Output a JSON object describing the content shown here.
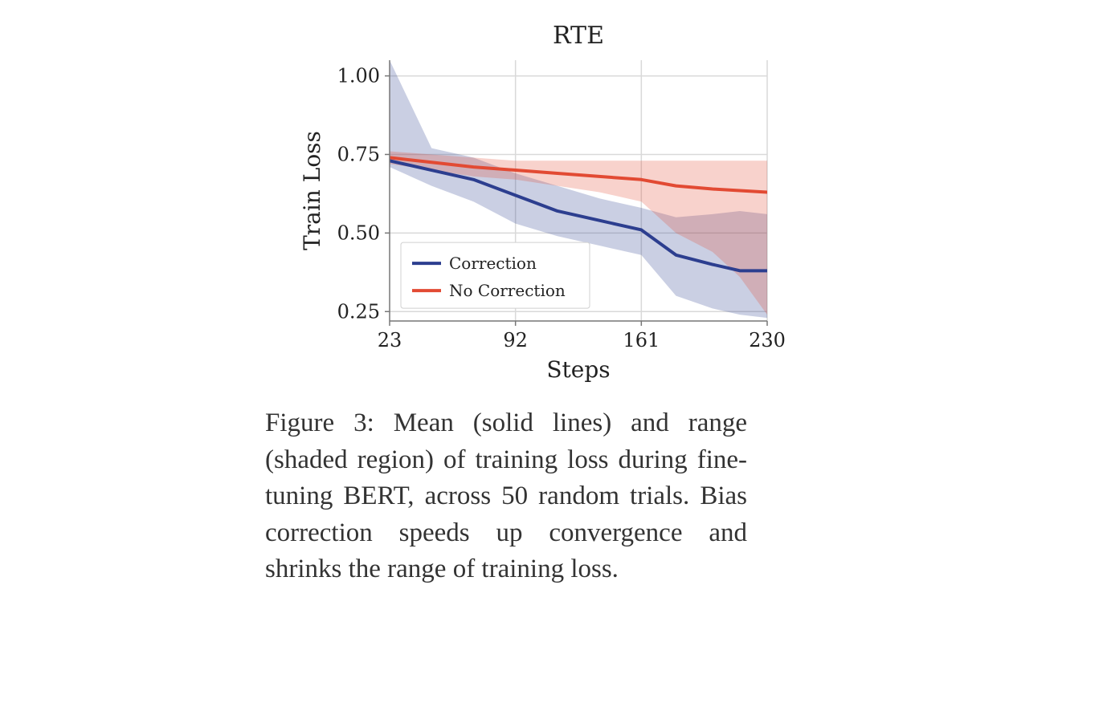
{
  "chart": {
    "type": "line",
    "title": "RTE",
    "title_fontsize": 30,
    "xlabel": "Steps",
    "ylabel": "Train Loss",
    "label_fontsize": 28,
    "tick_fontsize": 24,
    "xlim": [
      23,
      230
    ],
    "ylim": [
      0.22,
      1.05
    ],
    "xticks": [
      23,
      92,
      161,
      230
    ],
    "yticks": [
      0.25,
      0.5,
      0.75,
      1.0
    ],
    "ytick_labels": [
      "0.25",
      "0.50",
      "0.75",
      "1.00"
    ],
    "grid_color": "#d9d9d9",
    "grid_vlines": [
      92,
      161,
      230
    ],
    "grid_hlines": [
      0.25,
      0.5,
      0.75,
      1.0
    ],
    "background_color": "#ffffff",
    "axis_color": "#777777",
    "line_width": 4,
    "band_opacity": 0.25,
    "legend": {
      "items": [
        {
          "label": "Correction",
          "color": "#2c3e8f"
        },
        {
          "label": "No Correction",
          "color": "#e24a33"
        }
      ],
      "fontsize": 20,
      "box_stroke": "#d0d0d0",
      "box_fill": "#ffffff"
    },
    "series": [
      {
        "name": "Correction",
        "color": "#2c3e8f",
        "band_color": "#2c3e8f",
        "x": [
          23,
          46,
          69,
          92,
          115,
          138,
          161,
          180,
          200,
          215,
          230
        ],
        "mean": [
          0.73,
          0.7,
          0.67,
          0.62,
          0.57,
          0.54,
          0.51,
          0.43,
          0.4,
          0.38,
          0.38
        ],
        "lo": [
          0.71,
          0.65,
          0.6,
          0.53,
          0.49,
          0.46,
          0.43,
          0.3,
          0.26,
          0.24,
          0.23
        ],
        "hi": [
          1.05,
          0.77,
          0.74,
          0.69,
          0.65,
          0.61,
          0.58,
          0.55,
          0.56,
          0.57,
          0.56
        ]
      },
      {
        "name": "No Correction",
        "color": "#e24a33",
        "band_color": "#e24a33",
        "x": [
          23,
          46,
          69,
          92,
          115,
          138,
          161,
          180,
          200,
          215,
          230
        ],
        "mean": [
          0.74,
          0.725,
          0.71,
          0.7,
          0.69,
          0.68,
          0.67,
          0.65,
          0.64,
          0.635,
          0.63
        ],
        "lo": [
          0.72,
          0.7,
          0.68,
          0.67,
          0.65,
          0.63,
          0.6,
          0.5,
          0.44,
          0.36,
          0.24
        ],
        "hi": [
          0.76,
          0.75,
          0.74,
          0.73,
          0.73,
          0.73,
          0.73,
          0.73,
          0.73,
          0.73,
          0.73
        ]
      }
    ]
  },
  "caption": {
    "prefix": "Figure 3:",
    "body": "Mean (solid lines) and range (shaded region) of training loss during fine-tuning BERT, across 50 random trials.  Bias correction speeds up convergence and shrinks the range of training loss."
  }
}
